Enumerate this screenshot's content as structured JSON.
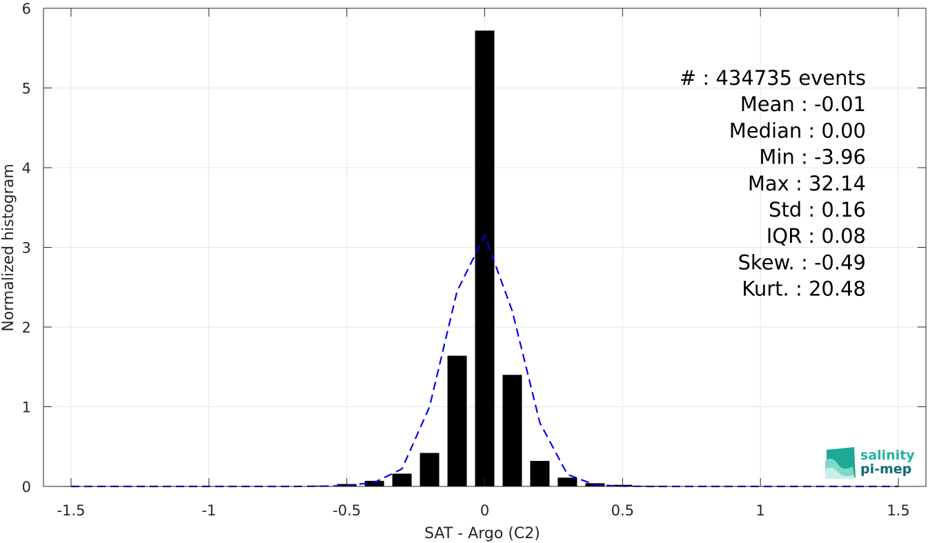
{
  "chart_data": {
    "type": "bar",
    "xlabel": "SAT - Argo (C2)",
    "ylabel": "Normalized histogram",
    "xlim": [
      -1.6,
      1.6
    ],
    "ylim": [
      0,
      6
    ],
    "xticks": [
      -1.5,
      -1,
      -0.5,
      0,
      0.5,
      1,
      1.5
    ],
    "xtick_labels": [
      "-1.5",
      "-1",
      "-0.5",
      "0",
      "0.5",
      "1",
      "1.5"
    ],
    "yticks": [
      0,
      1,
      2,
      3,
      4,
      5,
      6
    ],
    "ytick_labels": [
      "0",
      "1",
      "2",
      "3",
      "4",
      "5",
      "6"
    ],
    "grid": true,
    "bar_width": 0.07,
    "bars": {
      "x": [
        -1.5,
        -1.4,
        -1.3,
        -1.2,
        -1.1,
        -1.0,
        -0.9,
        -0.8,
        -0.7,
        -0.6,
        -0.5,
        -0.4,
        -0.3,
        -0.2,
        -0.1,
        0.0,
        0.1,
        0.2,
        0.3,
        0.4,
        0.5,
        0.6,
        0.7,
        0.8,
        0.9,
        1.0,
        1.1,
        1.2,
        1.3,
        1.4,
        1.5
      ],
      "values": [
        0.002,
        0.002,
        0.002,
        0.002,
        0.002,
        0.002,
        0.002,
        0.003,
        0.004,
        0.01,
        0.03,
        0.07,
        0.16,
        0.42,
        1.64,
        5.72,
        1.4,
        0.32,
        0.11,
        0.04,
        0.02,
        0.008,
        0.004,
        0.003,
        0.002,
        0.002,
        0.002,
        0.002,
        0.002,
        0.002,
        0.002
      ],
      "color": "#000000"
    },
    "fit_curve": {
      "style": "dashed",
      "color": "#0000ee",
      "x": [
        -1.5,
        -1.4,
        -1.3,
        -1.2,
        -1.1,
        -1.0,
        -0.9,
        -0.8,
        -0.7,
        -0.6,
        -0.5,
        -0.4,
        -0.3,
        -0.2,
        -0.1,
        0.0,
        0.1,
        0.2,
        0.3,
        0.4,
        0.5,
        0.6,
        0.7,
        0.8,
        0.9,
        1.0,
        1.1,
        1.2,
        1.3,
        1.4,
        1.5
      ],
      "values": [
        0,
        0,
        0,
        0,
        0,
        0,
        0,
        0,
        0,
        0.002,
        0.01,
        0.05,
        0.22,
        1.0,
        2.45,
        3.15,
        2.2,
        0.8,
        0.15,
        0.02,
        0.003,
        0,
        0,
        0,
        0,
        0,
        0,
        0,
        0,
        0,
        0
      ]
    },
    "stats": [
      "#  : 434735 events",
      "Mean : -0.01",
      "Median : 0.00",
      "Min : -3.96",
      "Max : 32.14",
      "Std : 0.16",
      "IQR : 0.08",
      "Skew. : -0.49",
      "Kurt. : 20.48"
    ]
  },
  "logo": {
    "line1": "salinity",
    "line2": "pi-mep",
    "color1": "#21b3a0",
    "color2": "#0e6b7a"
  }
}
